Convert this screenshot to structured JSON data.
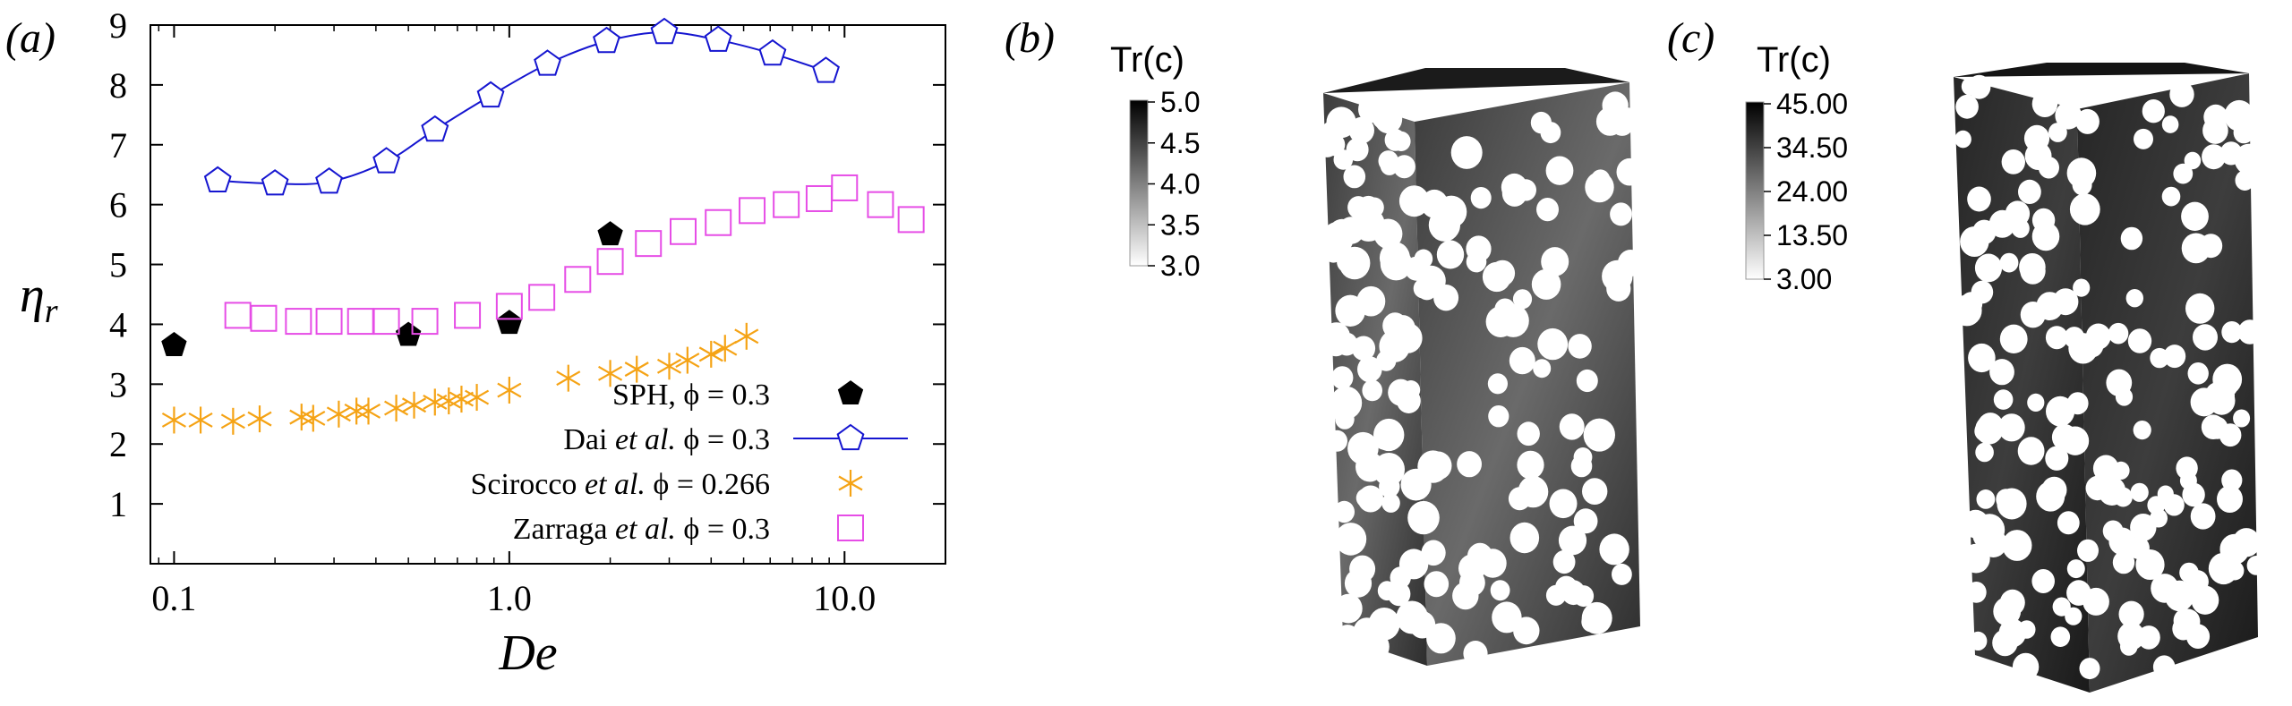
{
  "panels": {
    "a": "(a)",
    "b": "(b)",
    "c": "(c)"
  },
  "colors": {
    "sph": "#000000",
    "dai": "#1515d0",
    "scirocco": "#f5a315",
    "zarraga": "#e64de6"
  },
  "chart_data": {
    "type": "scatter",
    "xscale": "log",
    "xlim": [
      0.085,
      20
    ],
    "ylim": [
      0,
      9
    ],
    "xlabel": "De",
    "ylabel_main": "η",
    "ylabel_sub": "r",
    "xticks": [
      {
        "value": 0.1,
        "label": "0.1"
      },
      {
        "value": 1.0,
        "label": "1.0"
      },
      {
        "value": 10.0,
        "label": "10.0"
      }
    ],
    "yticks": [
      {
        "value": 1,
        "label": "1"
      },
      {
        "value": 2,
        "label": "2"
      },
      {
        "value": 3,
        "label": "3"
      },
      {
        "value": 4,
        "label": "4"
      },
      {
        "value": 5,
        "label": "5"
      },
      {
        "value": 6,
        "label": "6"
      },
      {
        "value": 7,
        "label": "7"
      },
      {
        "value": 8,
        "label": "8"
      },
      {
        "value": 9,
        "label": "9"
      }
    ],
    "legend_position": "bottom-right",
    "series": [
      {
        "key": "sph",
        "name_prefix": "SPH, ",
        "name_italic": "",
        "name_suffix": " ϕ = 0.3",
        "marker": "filled-pentagon",
        "line": false,
        "x": [
          0.1,
          0.5,
          1.0,
          2.0
        ],
        "y": [
          3.65,
          3.82,
          4.02,
          5.5
        ]
      },
      {
        "key": "dai",
        "name_prefix": "Dai ",
        "name_italic": "et al.",
        "name_suffix": " ϕ = 0.3",
        "marker": "open-pentagon",
        "line": true,
        "x": [
          0.135,
          0.2,
          0.29,
          0.43,
          0.6,
          0.88,
          1.3,
          1.95,
          2.9,
          4.2,
          6.1,
          8.8
        ],
        "y": [
          6.4,
          6.35,
          6.38,
          6.72,
          7.25,
          7.82,
          8.35,
          8.73,
          8.88,
          8.75,
          8.52,
          8.23
        ]
      },
      {
        "key": "scirocco",
        "name_prefix": "Scirocco ",
        "name_italic": "et al.",
        "name_suffix": " ϕ = 0.266",
        "marker": "asterisk",
        "line": false,
        "x": [
          0.1,
          0.12,
          0.15,
          0.18,
          0.24,
          0.26,
          0.31,
          0.35,
          0.38,
          0.46,
          0.52,
          0.6,
          0.66,
          0.72,
          0.8,
          1.0,
          1.5,
          2.0,
          2.4,
          3.0,
          3.4,
          4.0,
          4.4,
          5.1
        ],
        "y": [
          2.4,
          2.4,
          2.38,
          2.42,
          2.45,
          2.43,
          2.5,
          2.55,
          2.55,
          2.6,
          2.65,
          2.7,
          2.72,
          2.75,
          2.78,
          2.9,
          3.1,
          3.18,
          3.25,
          3.3,
          3.4,
          3.5,
          3.6,
          3.8
        ]
      },
      {
        "key": "zarraga",
        "name_prefix": "Zarraga ",
        "name_italic": "et al.",
        "name_suffix": " ϕ = 0.3",
        "marker": "open-square",
        "line": false,
        "x": [
          0.155,
          0.185,
          0.235,
          0.29,
          0.36,
          0.43,
          0.56,
          0.75,
          1.0,
          1.25,
          1.6,
          2.0,
          2.6,
          3.3,
          4.2,
          5.3,
          6.7,
          8.4,
          10.0,
          12.8,
          15.8
        ],
        "y": [
          4.15,
          4.1,
          4.05,
          4.05,
          4.05,
          4.05,
          4.05,
          4.15,
          4.3,
          4.45,
          4.75,
          5.05,
          5.35,
          5.55,
          5.7,
          5.9,
          6.0,
          6.1,
          6.28,
          6.0,
          5.75
        ]
      }
    ]
  },
  "colorbars": {
    "b": {
      "title": "Tr(c)",
      "ticks": [
        "5.0",
        "4.5",
        "4.0",
        "3.5",
        "3.0"
      ]
    },
    "c": {
      "title": "Tr(c)",
      "ticks": [
        "45.00",
        "34.50",
        "24.00",
        "13.50",
        "3.00"
      ]
    }
  }
}
